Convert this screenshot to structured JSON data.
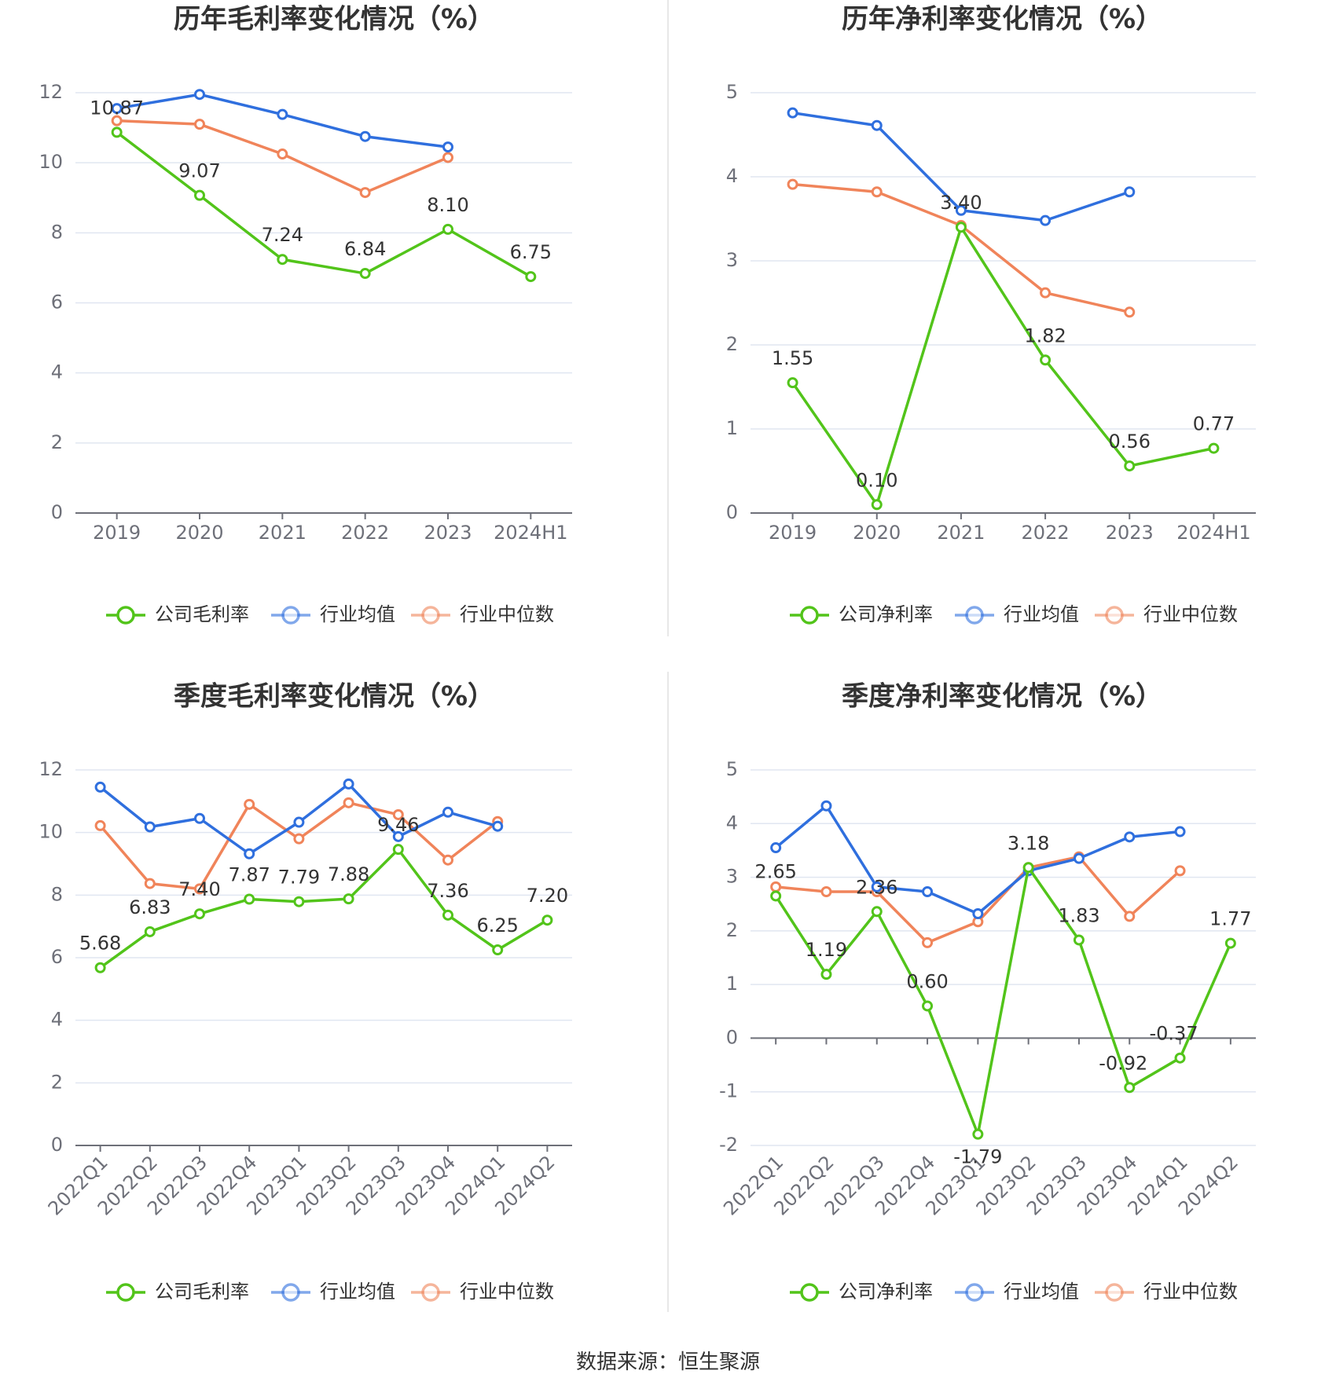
{
  "source_text": "数据来源：恒生聚源",
  "colors": {
    "company": "#52c41a",
    "avg": "#2f6fde",
    "median": "#f0845a",
    "grid": "#e0e6f1",
    "axis": "#6e7079"
  },
  "legend_labels": {
    "avg": "行业均值",
    "median": "行业中位数"
  },
  "chart_data": [
    {
      "type": "line",
      "title": "历年毛利率变化情况（%）",
      "categories": [
        "2019",
        "2020",
        "2021",
        "2022",
        "2023",
        "2024H1"
      ],
      "ylim": [
        0,
        12
      ],
      "yticks": [
        "0",
        "2",
        "4",
        "6",
        "8",
        "10",
        "12"
      ],
      "series": [
        {
          "name": "公司毛利率",
          "role": "company",
          "values": [
            10.87,
            9.07,
            7.24,
            6.84,
            8.1,
            6.75
          ],
          "labels": [
            "10.87",
            "9.07",
            "7.24",
            "6.84",
            "8.10",
            "6.75"
          ]
        },
        {
          "name": "行业均值",
          "role": "avg",
          "values": [
            11.55,
            11.95,
            11.38,
            10.75,
            10.45,
            null
          ]
        },
        {
          "name": "行业中位数",
          "role": "median",
          "values": [
            11.2,
            11.1,
            10.25,
            9.15,
            10.15,
            null
          ]
        }
      ]
    },
    {
      "type": "line",
      "title": "历年净利率变化情况（%）",
      "categories": [
        "2019",
        "2020",
        "2021",
        "2022",
        "2023",
        "2024H1"
      ],
      "ylim": [
        0,
        5
      ],
      "yticks": [
        "0",
        "1",
        "2",
        "3",
        "4",
        "5"
      ],
      "series": [
        {
          "name": "公司净利率",
          "role": "company",
          "values": [
            1.55,
            0.1,
            3.4,
            1.82,
            0.56,
            0.77
          ],
          "labels": [
            "1.55",
            "0.10",
            "3.40",
            "1.82",
            "0.56",
            "0.77"
          ]
        },
        {
          "name": "行业均值",
          "role": "avg",
          "values": [
            4.76,
            4.61,
            3.6,
            3.48,
            3.82,
            null
          ]
        },
        {
          "name": "行业中位数",
          "role": "median",
          "values": [
            3.91,
            3.82,
            3.42,
            2.62,
            2.39,
            null
          ]
        }
      ]
    },
    {
      "type": "line",
      "title": "季度毛利率变化情况（%）",
      "categories": [
        "2022Q1",
        "2022Q2",
        "2022Q3",
        "2022Q4",
        "2023Q1",
        "2023Q2",
        "2023Q3",
        "2023Q4",
        "2024Q1",
        "2024Q2"
      ],
      "ylim": [
        0,
        12
      ],
      "yticks": [
        "0",
        "2",
        "4",
        "6",
        "8",
        "10",
        "12"
      ],
      "series": [
        {
          "name": "公司毛利率",
          "role": "company",
          "values": [
            5.68,
            6.83,
            7.4,
            7.87,
            7.79,
            7.88,
            9.46,
            7.36,
            6.25,
            7.2
          ],
          "labels": [
            "5.68",
            "6.83",
            "7.40",
            "7.87",
            "7.79",
            "7.88",
            "9.46",
            "7.36",
            "6.25",
            "7.20"
          ]
        },
        {
          "name": "行业均值",
          "role": "avg",
          "values": [
            11.45,
            10.18,
            10.45,
            9.32,
            10.33,
            11.55,
            9.87,
            10.65,
            10.2,
            null
          ]
        },
        {
          "name": "行业中位数",
          "role": "median",
          "values": [
            10.22,
            8.37,
            8.2,
            10.9,
            9.8,
            10.95,
            10.57,
            9.12,
            10.35,
            null
          ]
        }
      ]
    },
    {
      "type": "line",
      "title": "季度净利率变化情况（%）",
      "categories": [
        "2022Q1",
        "2022Q2",
        "2022Q3",
        "2022Q4",
        "2023Q1",
        "2023Q2",
        "2023Q3",
        "2023Q4",
        "2024Q1",
        "2024Q2"
      ],
      "ylim": [
        -2,
        5
      ],
      "yticks": [
        "-2",
        "-1",
        "0",
        "1",
        "2",
        "3",
        "4",
        "5"
      ],
      "series": [
        {
          "name": "公司净利率",
          "role": "company",
          "values": [
            2.65,
            1.19,
            2.36,
            0.6,
            -1.79,
            3.18,
            1.83,
            -0.92,
            -0.37,
            1.77
          ],
          "labels": [
            "2.65",
            "1.19",
            "2.36",
            "0.60",
            "-1.79",
            "3.18",
            "1.83",
            "-0.92",
            "-0.37",
            "1.77"
          ]
        },
        {
          "name": "行业均值",
          "role": "avg",
          "values": [
            3.55,
            4.33,
            2.82,
            2.73,
            2.32,
            3.12,
            3.35,
            3.75,
            3.85,
            null
          ]
        },
        {
          "name": "行业中位数",
          "role": "median",
          "values": [
            2.82,
            2.73,
            2.73,
            1.78,
            2.17,
            3.18,
            3.38,
            2.27,
            3.12,
            null
          ]
        }
      ]
    }
  ]
}
